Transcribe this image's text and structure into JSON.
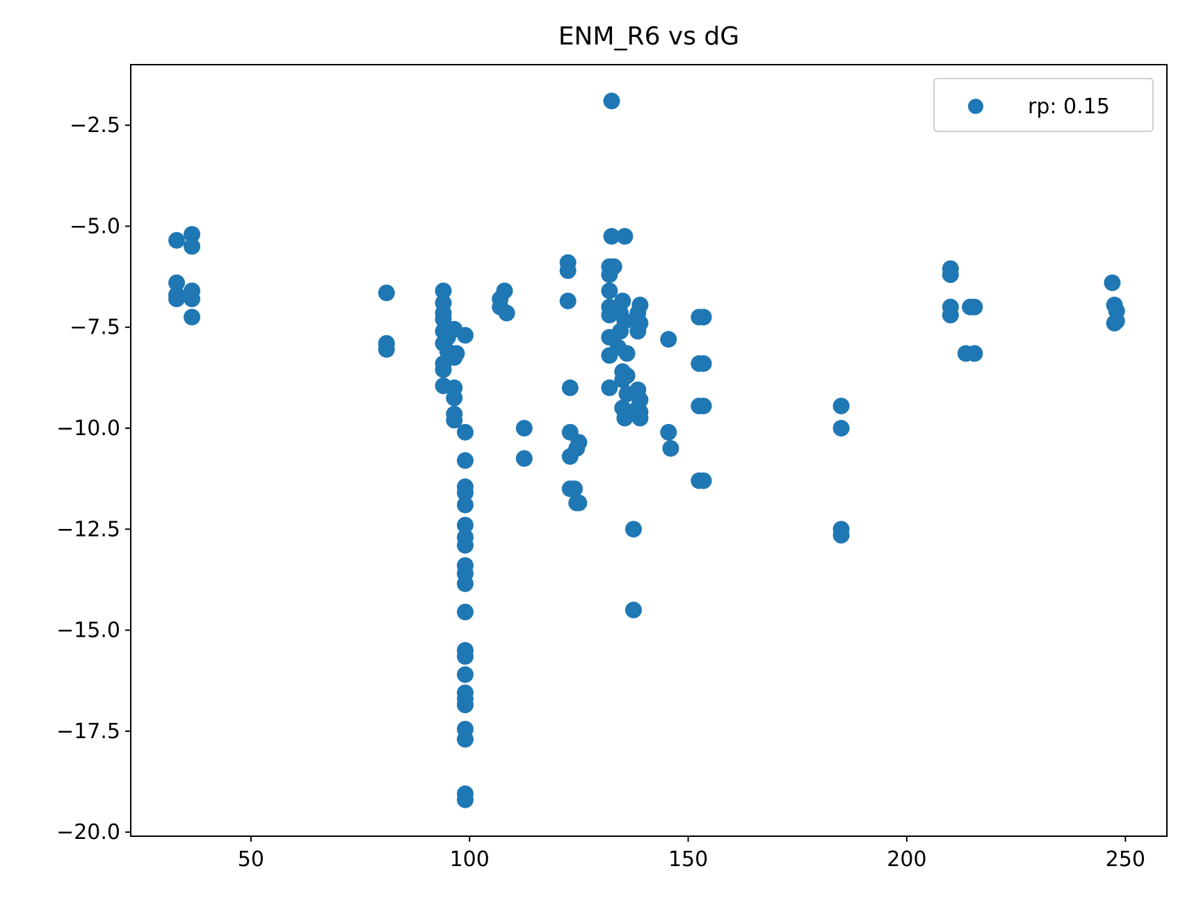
{
  "chart_data": {
    "type": "scatter",
    "title": "ENM_R6 vs dG",
    "xlabel": "",
    "ylabel": "",
    "xlim": [
      22.5,
      259.5
    ],
    "ylim": [
      -20.1,
      -1.0
    ],
    "x_ticks": [
      50,
      100,
      150,
      200,
      250
    ],
    "x_tick_labels": [
      "50",
      "100",
      "150",
      "200",
      "250"
    ],
    "y_ticks": [
      -2.5,
      -5.0,
      -7.5,
      -10.0,
      -12.5,
      -15.0,
      -17.5,
      -20.0
    ],
    "y_tick_labels": [
      "−2.5",
      "−5.0",
      "−7.5",
      "−10.0",
      "−12.5",
      "−15.0",
      "−17.5",
      "−20.0"
    ],
    "grid": false,
    "legend_position": "top-right",
    "series": [
      {
        "name": "rp: 0.15",
        "color": "#1f77b4",
        "points": [
          [
            33,
            -5.35
          ],
          [
            33,
            -6.4
          ],
          [
            33,
            -6.7
          ],
          [
            33,
            -6.8
          ],
          [
            36.5,
            -5.2
          ],
          [
            36.5,
            -5.5
          ],
          [
            36.5,
            -6.6
          ],
          [
            36.5,
            -6.8
          ],
          [
            36.5,
            -7.25
          ],
          [
            81,
            -6.65
          ],
          [
            81,
            -7.9
          ],
          [
            81,
            -8.05
          ],
          [
            94,
            -6.6
          ],
          [
            94,
            -6.9
          ],
          [
            94,
            -7.15
          ],
          [
            94,
            -7.3
          ],
          [
            94,
            -7.6
          ],
          [
            94,
            -7.9
          ],
          [
            94,
            -8.4
          ],
          [
            94,
            -8.55
          ],
          [
            94,
            -8.95
          ],
          [
            95,
            -7.75
          ],
          [
            95,
            -8.1
          ],
          [
            96.5,
            -7.55
          ],
          [
            96.5,
            -8.25
          ],
          [
            96.5,
            -9.0
          ],
          [
            96.5,
            -9.25
          ],
          [
            96.5,
            -9.65
          ],
          [
            96.5,
            -9.8
          ],
          [
            97,
            -8.15
          ],
          [
            99,
            -7.7
          ],
          [
            99,
            -10.1
          ],
          [
            99,
            -10.8
          ],
          [
            99,
            -11.45
          ],
          [
            99,
            -11.6
          ],
          [
            99,
            -11.9
          ],
          [
            99,
            -12.4
          ],
          [
            99,
            -12.7
          ],
          [
            99,
            -12.9
          ],
          [
            99,
            -13.4
          ],
          [
            99,
            -13.6
          ],
          [
            99,
            -13.85
          ],
          [
            99,
            -14.55
          ],
          [
            99,
            -15.5
          ],
          [
            99,
            -15.65
          ],
          [
            99,
            -16.1
          ],
          [
            99,
            -16.55
          ],
          [
            99,
            -16.7
          ],
          [
            99,
            -16.85
          ],
          [
            99,
            -17.45
          ],
          [
            99,
            -17.7
          ],
          [
            99,
            -19.05
          ],
          [
            99,
            -19.2
          ],
          [
            107,
            -6.8
          ],
          [
            107,
            -7.0
          ],
          [
            108,
            -6.6
          ],
          [
            108.5,
            -7.15
          ],
          [
            112.5,
            -10.0
          ],
          [
            112.5,
            -10.75
          ],
          [
            122.5,
            -5.9
          ],
          [
            122.5,
            -6.1
          ],
          [
            122.5,
            -6.85
          ],
          [
            123,
            -9.0
          ],
          [
            123,
            -10.1
          ],
          [
            123,
            -10.7
          ],
          [
            123,
            -11.5
          ],
          [
            124,
            -11.5
          ],
          [
            124.5,
            -10.5
          ],
          [
            124.5,
            -11.85
          ],
          [
            125,
            -10.35
          ],
          [
            125,
            -11.85
          ],
          [
            132,
            -6.0
          ],
          [
            132,
            -6.2
          ],
          [
            132,
            -6.6
          ],
          [
            132,
            -7.0
          ],
          [
            132,
            -7.2
          ],
          [
            132,
            -7.75
          ],
          [
            132,
            -8.2
          ],
          [
            132,
            -9.0
          ],
          [
            132.5,
            -1.9
          ],
          [
            132.5,
            -5.25
          ],
          [
            133,
            -6.0
          ],
          [
            134,
            -8.0
          ],
          [
            134.5,
            -7.15
          ],
          [
            134.5,
            -7.6
          ],
          [
            135,
            -6.85
          ],
          [
            135,
            -8.6
          ],
          [
            135,
            -8.8
          ],
          [
            135,
            -9.5
          ],
          [
            135.5,
            -5.25
          ],
          [
            135.5,
            -7.35
          ],
          [
            135.5,
            -9.75
          ],
          [
            136,
            -8.15
          ],
          [
            136,
            -8.7
          ],
          [
            136,
            -9.15
          ],
          [
            137.5,
            -12.5
          ],
          [
            137.5,
            -14.5
          ],
          [
            138.5,
            -7.15
          ],
          [
            138.5,
            -7.6
          ],
          [
            138.5,
            -9.05
          ],
          [
            138.5,
            -9.5
          ],
          [
            139,
            -6.95
          ],
          [
            139,
            -7.4
          ],
          [
            139,
            -9.3
          ],
          [
            139,
            -9.6
          ],
          [
            139,
            -9.75
          ],
          [
            145.5,
            -7.8
          ],
          [
            145.5,
            -10.1
          ],
          [
            146,
            -10.5
          ],
          [
            152.5,
            -7.25
          ],
          [
            152.5,
            -8.4
          ],
          [
            152.5,
            -9.45
          ],
          [
            152.5,
            -11.3
          ],
          [
            153.5,
            -7.25
          ],
          [
            153.5,
            -8.4
          ],
          [
            153.5,
            -9.45
          ],
          [
            153.5,
            -11.3
          ],
          [
            185,
            -9.45
          ],
          [
            185,
            -10.0
          ],
          [
            185,
            -12.5
          ],
          [
            185,
            -12.65
          ],
          [
            210,
            -6.05
          ],
          [
            210,
            -6.2
          ],
          [
            210,
            -7.0
          ],
          [
            210,
            -7.2
          ],
          [
            213.5,
            -8.15
          ],
          [
            214.5,
            -7.0
          ],
          [
            215.5,
            -7.0
          ],
          [
            215.5,
            -8.15
          ],
          [
            247,
            -6.4
          ],
          [
            247.5,
            -6.95
          ],
          [
            247.5,
            -7.4
          ],
          [
            248,
            -7.1
          ],
          [
            248,
            -7.35
          ]
        ]
      }
    ]
  }
}
